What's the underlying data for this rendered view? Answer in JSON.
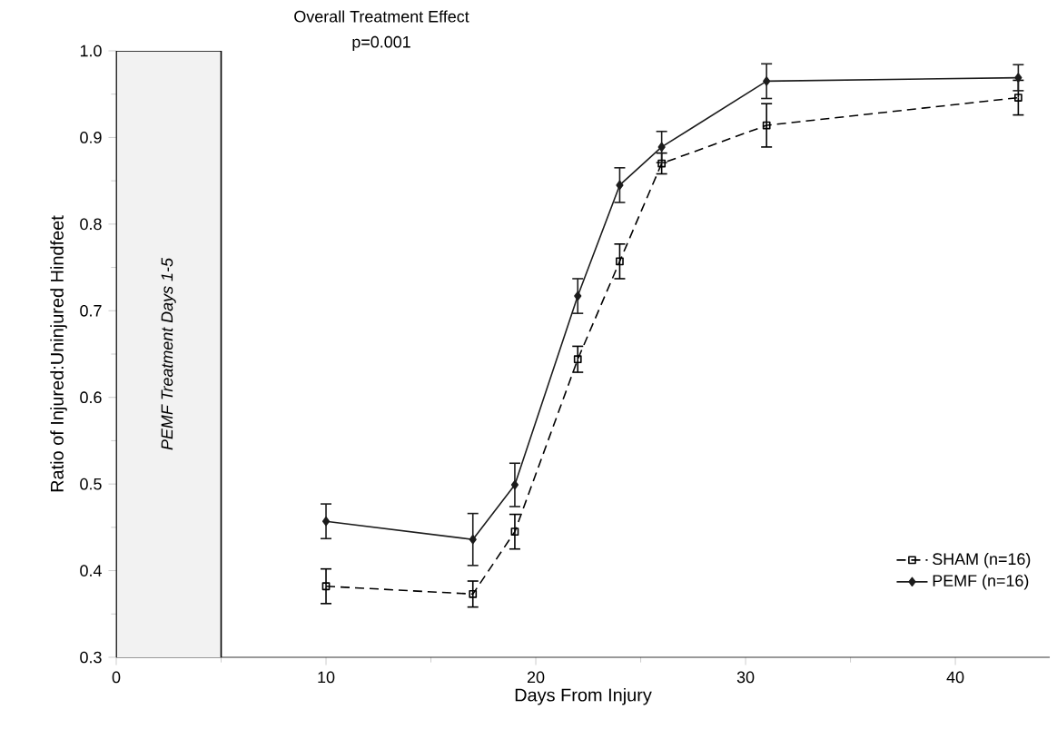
{
  "chart_data": {
    "type": "line",
    "annotations": [
      "Overall Treatment Effect",
      "p=0.001"
    ],
    "xlabel": "Days From Injury",
    "ylabel": "Ratio of Injured:Uninjured Hindfeet",
    "xlim": [
      0,
      44.5
    ],
    "xticks": [
      0,
      10,
      20,
      30,
      40
    ],
    "ylim": [
      0.3,
      1.0
    ],
    "yticks": [
      {
        "value": 0.3,
        "label": "0.3"
      },
      {
        "value": 0.4,
        "label": "0.4"
      },
      {
        "value": 0.5,
        "label": "0.5"
      },
      {
        "value": 0.6,
        "label": "0.6"
      },
      {
        "value": 0.7,
        "label": "0.7"
      },
      {
        "value": 0.8,
        "label": "0.8"
      },
      {
        "value": 0.9,
        "label": "0.9"
      },
      {
        "value": 1.0,
        "label": "1.0"
      }
    ],
    "x": [
      10,
      17,
      19,
      22,
      24,
      26,
      31,
      43
    ],
    "series": [
      {
        "name": "SHAM  (n=16)",
        "color": "#000000",
        "marker": "square",
        "line_style": "dashed",
        "values": [
          0.382,
          0.373,
          0.445,
          0.644,
          0.757,
          0.87,
          0.914,
          0.946
        ],
        "errors": [
          0.02,
          0.015,
          0.02,
          0.015,
          0.02,
          0.012,
          0.025,
          0.02
        ]
      },
      {
        "name": "PEMF (n=16)",
        "color": "#1c1c1c",
        "marker": "diamond",
        "line_style": "solid",
        "values": [
          0.457,
          0.436,
          0.499,
          0.717,
          0.845,
          0.889,
          0.965,
          0.969
        ],
        "errors": [
          0.02,
          0.03,
          0.025,
          0.02,
          0.02,
          0.018,
          0.02,
          0.015
        ]
      }
    ],
    "bands": [
      {
        "axis": "x",
        "from": 0,
        "to": 5,
        "label": "*PEMF Treatment Days 1-5*",
        "color": "#f2f2f2"
      }
    ],
    "legend": "bottom right"
  }
}
